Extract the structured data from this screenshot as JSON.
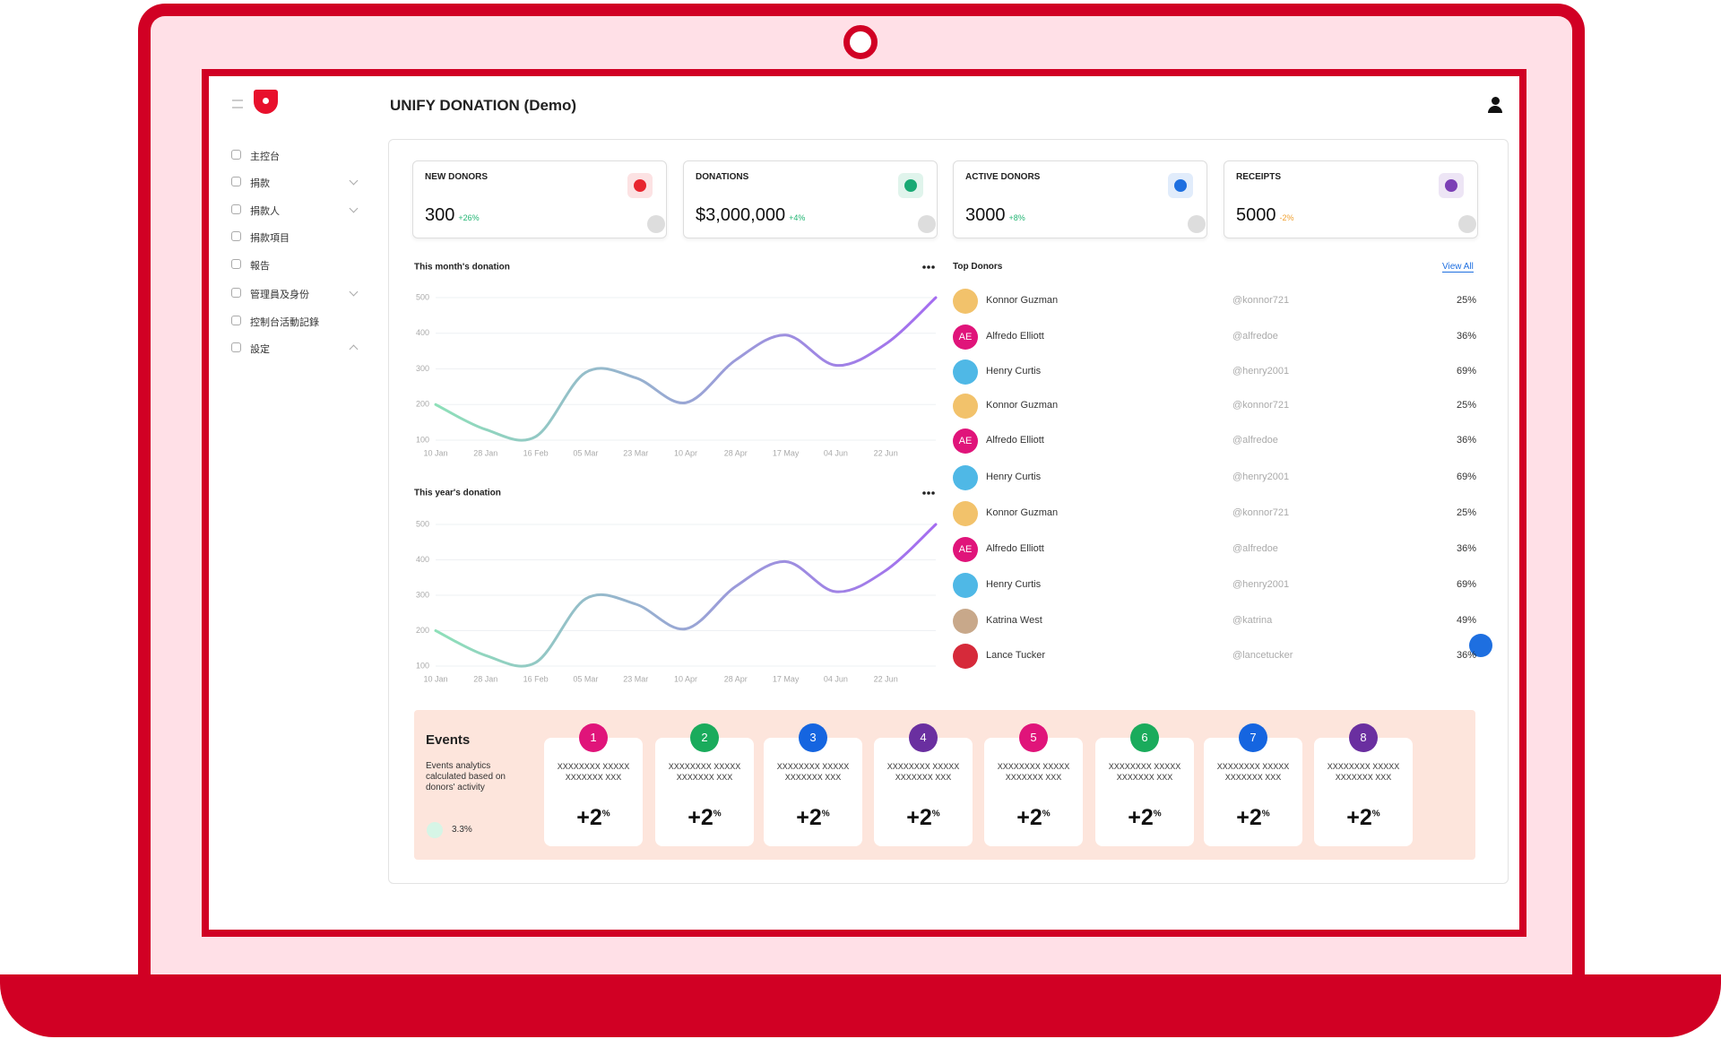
{
  "header": {
    "title": "UNIFY DONATION (Demo)"
  },
  "sidebar": {
    "items": [
      "主控台",
      "捐款",
      "捐款人",
      "捐款項目",
      "報告",
      "管理員及身份",
      "控制台活動記錄",
      "設定"
    ]
  },
  "stats": [
    {
      "label": "NEW DONORS",
      "value": "300",
      "change": "+26%",
      "color": "#e8262f"
    },
    {
      "label": "DONATIONS",
      "value": "$3,000,000",
      "change": "+4%",
      "color": "#19a974"
    },
    {
      "label": "ACTIVE DONORS",
      "value": "3000",
      "change": "+8%",
      "color": "#1e6fe0"
    },
    {
      "label": "RECEIPTS",
      "value": "5000",
      "change": "-2%",
      "color": "#7b3fb5"
    }
  ],
  "chart_data": [
    {
      "type": "line",
      "title": "This month's donation",
      "categories": [
        "10 Jan",
        "28 Jan",
        "16 Feb",
        "05 Mar",
        "23 Mar",
        "10 Apr",
        "28 Apr",
        "17 May",
        "04 Jun",
        "22 Jun",
        null
      ],
      "series": [
        {
          "color": "#a46cf0",
          "gradient_start": "#8ee0b9",
          "values": [
            200,
            130,
            110,
            290,
            275,
            205,
            325,
            395,
            310,
            370,
            500
          ]
        }
      ],
      "ylim": [
        100,
        500
      ],
      "yticks": [
        100,
        200,
        300,
        400,
        500
      ],
      "grid": true
    },
    {
      "type": "line",
      "title": "This year's donation",
      "categories": [
        "10 Jan",
        "28 Jan",
        "16 Feb",
        "05 Mar",
        "23 Mar",
        "10 Apr",
        "28 Apr",
        "17 May",
        "04 Jun",
        "22 Jun",
        null
      ],
      "series": [
        {
          "color": "#a46cf0",
          "gradient_start": "#8ee0b9",
          "values": [
            200,
            130,
            110,
            290,
            275,
            205,
            325,
            395,
            310,
            370,
            500
          ]
        }
      ],
      "ylim": [
        100,
        500
      ],
      "yticks": [
        100,
        200,
        300,
        400,
        500
      ],
      "grid": true
    }
  ],
  "top_donors": {
    "title": "Top Donors",
    "link": "View All",
    "rows": [
      {
        "name": "Konnor Guzman",
        "handle": "@konnor721",
        "share": "25%"
      },
      {
        "name": "Alfredo Elliott",
        "handle": "@alfredoe",
        "share": "36%",
        "avatar": "AE"
      },
      {
        "name": "Henry Curtis",
        "handle": "@henry2001",
        "share": "69%"
      },
      {
        "name": "Konnor Guzman",
        "handle": "@konnor721",
        "share": "25%"
      },
      {
        "name": "Alfredo Elliott",
        "handle": "@alfredoe",
        "share": "36%",
        "avatar": "AE"
      },
      {
        "name": "Henry Curtis",
        "handle": "@henry2001",
        "share": "69%"
      },
      {
        "name": "Konnor Guzman",
        "handle": "@konnor721",
        "share": "25%"
      },
      {
        "name": "Alfredo Elliott",
        "handle": "@alfredoe",
        "share": "36%",
        "avatar": "AE"
      },
      {
        "name": "Henry Curtis",
        "handle": "@henry2001",
        "share": "69%"
      },
      {
        "name": "Katrina West",
        "handle": "@katrina",
        "share": "49%"
      },
      {
        "name": "Lance Tucker",
        "handle": "@lancetucker",
        "share": "36%"
      }
    ]
  },
  "events": {
    "title": "Events",
    "description": "Events analytics calculated based on donors' activity",
    "trend": "3.3%",
    "cards": [
      {
        "number": "1",
        "text": "XXXXXXXX XXXXX XXXXXXX XXX",
        "value": "+2",
        "unit": "%",
        "color": "#e0147a"
      },
      {
        "number": "2",
        "text": "XXXXXXXX XXXXX XXXXXXX XXX",
        "value": "+2",
        "unit": "%",
        "color": "#1aab5c"
      },
      {
        "number": "3",
        "text": "XXXXXXXX XXXXX XXXXXXX XXX",
        "value": "+2",
        "unit": "%",
        "color": "#1565e0"
      },
      {
        "number": "4",
        "text": "XXXXXXXX XXXXX XXXXXXX XXX",
        "value": "+2",
        "unit": "%",
        "color": "#6a2fa0"
      },
      {
        "number": "5",
        "text": "XXXXXXXX XXXXX XXXXXXX XXX",
        "value": "+2",
        "unit": "%",
        "color": "#e0147a"
      },
      {
        "number": "6",
        "text": "XXXXXXXX XXXXX XXXXXXX XXX",
        "value": "+2",
        "unit": "%",
        "color": "#1aab5c"
      },
      {
        "number": "7",
        "text": "XXXXXXXX XXXXX XXXXXXX XXX",
        "value": "+2",
        "unit": "%",
        "color": "#1565e0"
      },
      {
        "number": "8",
        "text": "XXXXXXXX XXXXX XXXXXXX XXX",
        "value": "+2",
        "unit": "%",
        "color": "#6a2fa0"
      }
    ]
  }
}
